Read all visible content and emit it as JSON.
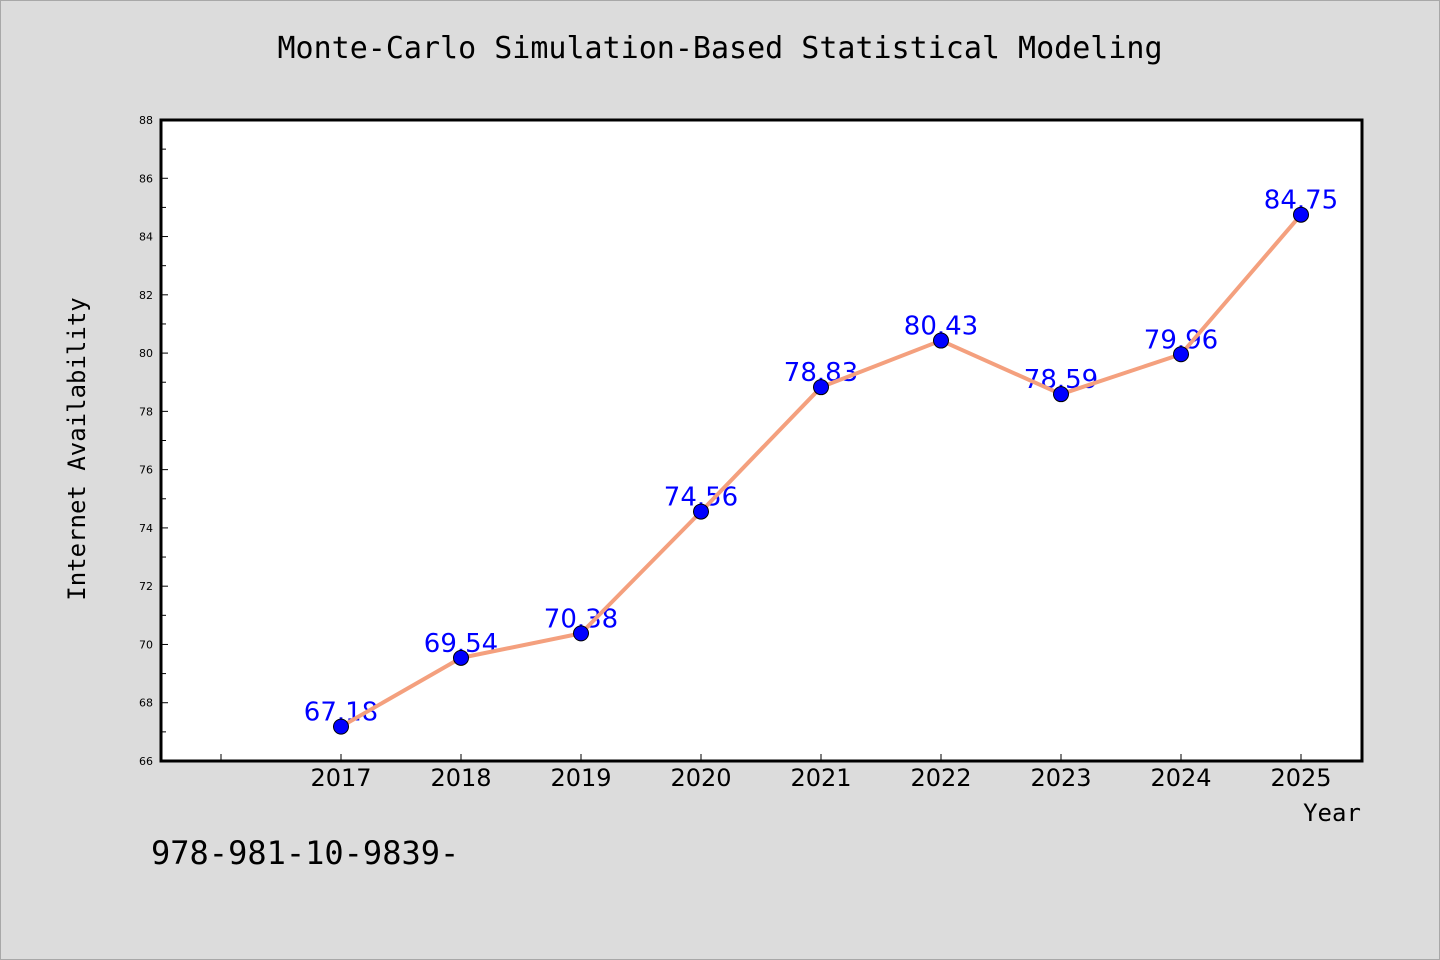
{
  "chart_data": {
    "type": "line",
    "title": "Monte-Carlo Simulation-Based Statistical Modeling",
    "xlabel": "Year",
    "ylabel": "Internet Availability",
    "x": [
      "2017",
      "2018",
      "2019",
      "2020",
      "2021",
      "2022",
      "2023",
      "2024",
      "2025"
    ],
    "series": [
      {
        "values": [
          67.18,
          69.54,
          70.38,
          74.56,
          78.83,
          80.43,
          78.59,
          79.96,
          84.75
        ],
        "data_labels": [
          "67.18",
          "69.54",
          "70.38",
          "74.56",
          "78.83",
          "80.43",
          "78.59",
          "79.96",
          "84.75"
        ],
        "line_color": "#f4a07e",
        "marker_color": "#0000ff"
      }
    ],
    "ylim": [
      66,
      88
    ],
    "yticks": [
      "66",
      "68",
      "70",
      "72",
      "74",
      "76",
      "78",
      "80",
      "82",
      "84",
      "86",
      "88"
    ],
    "grid": false,
    "legend": "none"
  },
  "footer": {
    "text": "978-981-10-9839-"
  },
  "colors": {
    "background": "#dcdcdc",
    "plot_background": "#ffffff"
  }
}
